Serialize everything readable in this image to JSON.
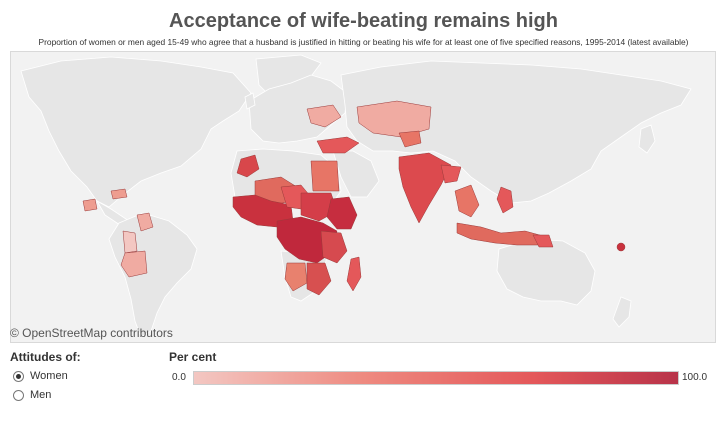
{
  "title": "Acceptance of wife-beating remains high",
  "subtitle": "Proportion of women or men aged 15-49 who agree that a husband is justified in hitting or beating his wife for at least one of five specified reasons, 1995-2014 (latest available)",
  "attribution": "© OpenStreetMap contributors",
  "filter": {
    "label": "Attitudes of:",
    "options": [
      {
        "label": "Women",
        "selected": true
      },
      {
        "label": "Men",
        "selected": false
      }
    ]
  },
  "legend": {
    "title": "Per cent",
    "min": "0.0",
    "max": "100.0",
    "colors": [
      "#f3c7c2",
      "#ee8a80",
      "#e4585a",
      "#b83349"
    ]
  },
  "colors": {
    "land": "#e6e6e6",
    "border": "#ffffff",
    "ocean": "#f2f2f2"
  }
}
